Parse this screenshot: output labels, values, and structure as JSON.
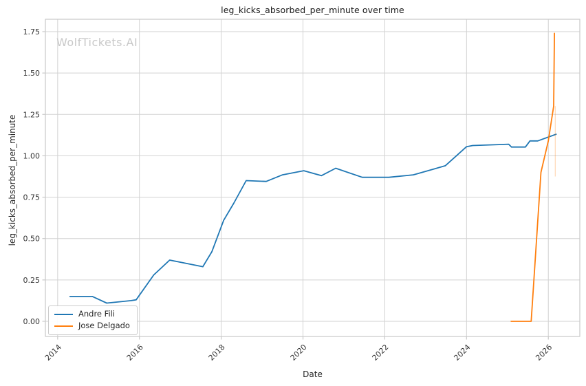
{
  "title": "leg_kicks_absorbed_per_minute over time",
  "watermark": "WolfTickets.AI",
  "colors": {
    "series_blue": "#1f77b4",
    "series_orange": "#ff7f0e",
    "grid": "#d2d2d2",
    "spine": "#c9c9c9",
    "tick_text": "#333333",
    "watermark_gray": "#c8c8c8"
  },
  "legend": {
    "items": [
      {
        "label": "Andre Fili",
        "color": "#1f77b4"
      },
      {
        "label": "Jose Delgado",
        "color": "#ff7f0e"
      }
    ]
  },
  "chart_data": {
    "type": "line",
    "title": "leg_kicks_absorbed_per_minute over time",
    "xlabel": "Date",
    "ylabel": "leg_kicks_absorbed_per_minute",
    "grid": true,
    "legend_position": "lower left",
    "xlim": [
      2013.7,
      2026.77
    ],
    "ylim": [
      -0.0915,
      1.8248
    ],
    "x_ticks": [
      2014,
      2016,
      2018,
      2020,
      2022,
      2024,
      2026
    ],
    "x_tick_labels": [
      "2014",
      "2016",
      "2018",
      "2020",
      "2022",
      "2024",
      "2026"
    ],
    "y_ticks": [
      0.0,
      0.25,
      0.5,
      0.75,
      1.0,
      1.25,
      1.5,
      1.75
    ],
    "y_tick_labels": [
      "0.00",
      "0.25",
      "0.50",
      "0.75",
      "1.00",
      "1.25",
      "1.50",
      "1.75"
    ],
    "series": [
      {
        "name": "Andre Fili",
        "color": "#1f77b4",
        "points": [
          [
            2014.3,
            0.15
          ],
          [
            2014.85,
            0.15
          ],
          [
            2015.2,
            0.11
          ],
          [
            2015.8,
            0.125
          ],
          [
            2015.92,
            0.13
          ],
          [
            2016.35,
            0.28
          ],
          [
            2016.74,
            0.37
          ],
          [
            2017.55,
            0.33
          ],
          [
            2017.77,
            0.42
          ],
          [
            2018.06,
            0.61
          ],
          [
            2018.31,
            0.715
          ],
          [
            2018.61,
            0.85
          ],
          [
            2019.1,
            0.845
          ],
          [
            2019.5,
            0.885
          ],
          [
            2020.02,
            0.91
          ],
          [
            2020.45,
            0.88
          ],
          [
            2020.8,
            0.925
          ],
          [
            2021.45,
            0.87
          ],
          [
            2022.1,
            0.87
          ],
          [
            2022.7,
            0.885
          ],
          [
            2023.48,
            0.94
          ],
          [
            2024.0,
            1.055
          ],
          [
            2024.15,
            1.062
          ],
          [
            2025.03,
            1.07
          ],
          [
            2025.1,
            1.053
          ],
          [
            2025.44,
            1.053
          ],
          [
            2025.55,
            1.09
          ],
          [
            2025.74,
            1.09
          ],
          [
            2026.19,
            1.13
          ]
        ]
      },
      {
        "name": "Jose Delgado",
        "color": "#ff7f0e",
        "points": [
          [
            2025.09,
            0.0
          ],
          [
            2025.58,
            0.0
          ],
          [
            2025.82,
            0.9
          ],
          [
            2026.0,
            1.09
          ],
          [
            2026.13,
            1.3
          ],
          [
            2026.15,
            1.74
          ]
        ]
      }
    ],
    "annotations": [
      {
        "type": "faint_vline",
        "x": 2026.17,
        "y0": 0.875,
        "y1": 1.3,
        "color": "#ff7f0e",
        "opacity": 0.28
      }
    ]
  }
}
